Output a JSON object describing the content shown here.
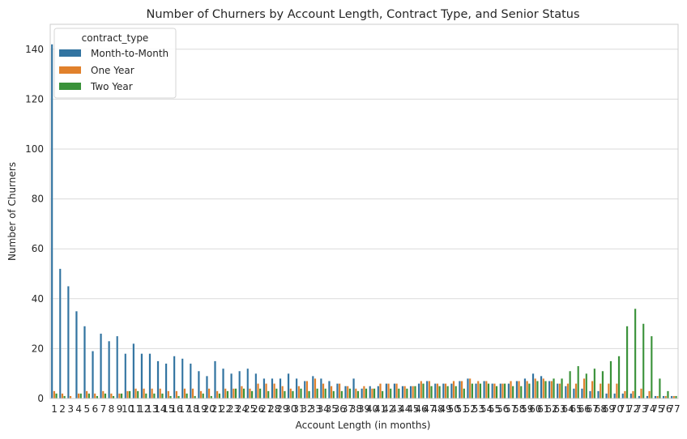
{
  "chart_data": {
    "type": "bar",
    "title": "Number of Churners by Account Length, Contract Type, and Senior Status",
    "xlabel": "Account Length (in months)",
    "ylabel": "Number of Churners",
    "ylim": [
      0,
      150
    ],
    "yticks": [
      0,
      20,
      40,
      60,
      80,
      100,
      120,
      140
    ],
    "grid": true,
    "legend": {
      "title": "contract_type",
      "position": "top-left"
    },
    "categories": [
      "1",
      "2",
      "3",
      "4",
      "5",
      "6",
      "7",
      "8",
      "9",
      "10",
      "11",
      "12",
      "13",
      "14",
      "15",
      "16",
      "17",
      "18",
      "19",
      "20",
      "21",
      "22",
      "23",
      "24",
      "25",
      "26",
      "27",
      "28",
      "29",
      "30",
      "31",
      "32",
      "33",
      "34",
      "35",
      "36",
      "37",
      "38",
      "39",
      "40",
      "41",
      "42",
      "43",
      "44",
      "45",
      "46",
      "47",
      "48",
      "49",
      "50",
      "51",
      "52",
      "53",
      "54",
      "55",
      "56",
      "57",
      "58",
      "59",
      "60",
      "61",
      "62",
      "63",
      "64",
      "65",
      "66",
      "67",
      "68",
      "69",
      "70",
      "71",
      "72",
      "73",
      "74",
      "75",
      "76",
      "77"
    ],
    "series": [
      {
        "name": "Month-to-Month",
        "color": "#3274a1",
        "values": [
          142,
          52,
          45,
          35,
          29,
          19,
          26,
          23,
          25,
          18,
          22,
          18,
          18,
          15,
          14,
          17,
          16,
          14,
          11,
          9,
          15,
          12,
          10,
          11,
          12,
          10,
          8,
          8,
          8,
          10,
          8,
          7,
          9,
          8,
          7,
          6,
          5,
          8,
          4,
          5,
          5,
          6,
          6,
          5,
          5,
          6,
          7,
          6,
          6,
          6,
          7,
          8,
          6,
          7,
          6,
          6,
          6,
          7,
          8,
          10,
          9,
          7,
          6,
          5,
          4,
          4,
          3,
          3,
          2,
          2,
          2,
          2,
          1,
          1,
          1,
          1,
          1
        ]
      },
      {
        "name": "One Year",
        "color": "#e1812c",
        "values": [
          3,
          2,
          1,
          2,
          3,
          2,
          3,
          2,
          2,
          3,
          4,
          4,
          4,
          4,
          3,
          3,
          4,
          4,
          3,
          4,
          3,
          4,
          4,
          5,
          4,
          6,
          6,
          6,
          5,
          4,
          5,
          7,
          8,
          6,
          5,
          6,
          5,
          4,
          5,
          4,
          6,
          6,
          6,
          5,
          5,
          7,
          7,
          6,
          6,
          7,
          7,
          8,
          7,
          7,
          6,
          6,
          7,
          7,
          7,
          8,
          8,
          7,
          6,
          6,
          6,
          8,
          7,
          6,
          6,
          6,
          3,
          3,
          4,
          3,
          1,
          1,
          1
        ]
      },
      {
        "name": "Two Year",
        "color": "#3a923a",
        "values": [
          2,
          1,
          0,
          2,
          2,
          1,
          2,
          1,
          2,
          3,
          3,
          2,
          2,
          2,
          1,
          1,
          2,
          1,
          2,
          1,
          2,
          3,
          4,
          4,
          3,
          4,
          3,
          4,
          3,
          3,
          4,
          3,
          4,
          4,
          3,
          3,
          4,
          3,
          4,
          4,
          3,
          4,
          4,
          4,
          5,
          6,
          5,
          5,
          5,
          5,
          4,
          6,
          6,
          6,
          5,
          6,
          5,
          5,
          6,
          7,
          7,
          8,
          8,
          11,
          13,
          10,
          12,
          11,
          15,
          17,
          29,
          36,
          30,
          25,
          8,
          3,
          1
        ]
      }
    ]
  }
}
